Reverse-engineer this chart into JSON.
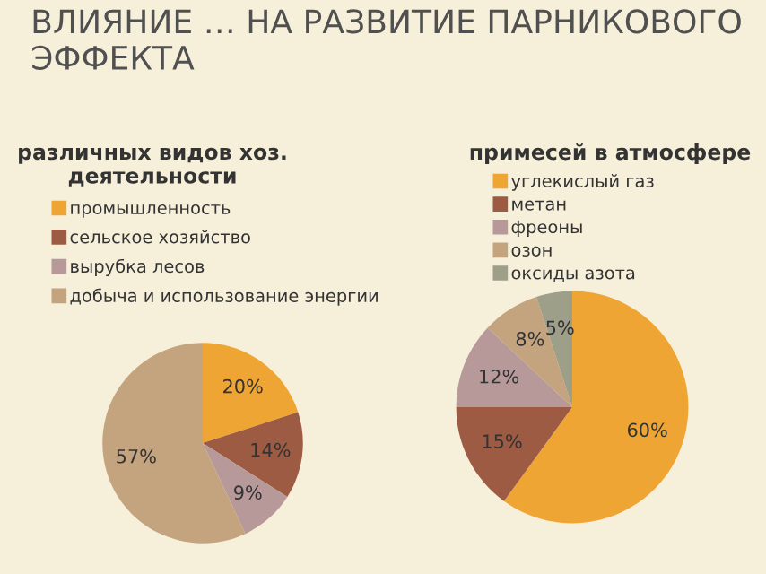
{
  "chart_data": [
    {
      "type": "pie",
      "title": "ВЛИЯНИЕ … НА РАЗВИТИЕ ПАРНИКОВОГО ЭФФЕКТА",
      "subtitle": "различных видов хоз. деятельности",
      "categories": [
        "промышленность",
        "сельское хозяйство",
        "вырубка лесов",
        "добыча и использование энергии"
      ],
      "values": [
        20,
        14,
        9,
        57
      ],
      "value_labels": [
        "20%",
        "14%",
        "9%",
        "57%"
      ],
      "colors": [
        "#eea534",
        "#9c5b42",
        "#b8999a",
        "#c4a37f"
      ],
      "legend": "top"
    },
    {
      "type": "pie",
      "subtitle": "примесей в атмосфере",
      "categories": [
        "углекислый газ",
        "метан",
        "фреоны",
        "озон",
        "оксиды азота"
      ],
      "values": [
        60,
        15,
        12,
        8,
        5
      ],
      "value_labels": [
        "60%",
        "15%",
        "12%",
        "8%",
        "5%"
      ],
      "colors": [
        "#eea534",
        "#9c5b42",
        "#b8999a",
        "#c4a37f",
        "#9e9f88"
      ],
      "legend": "top right"
    }
  ]
}
